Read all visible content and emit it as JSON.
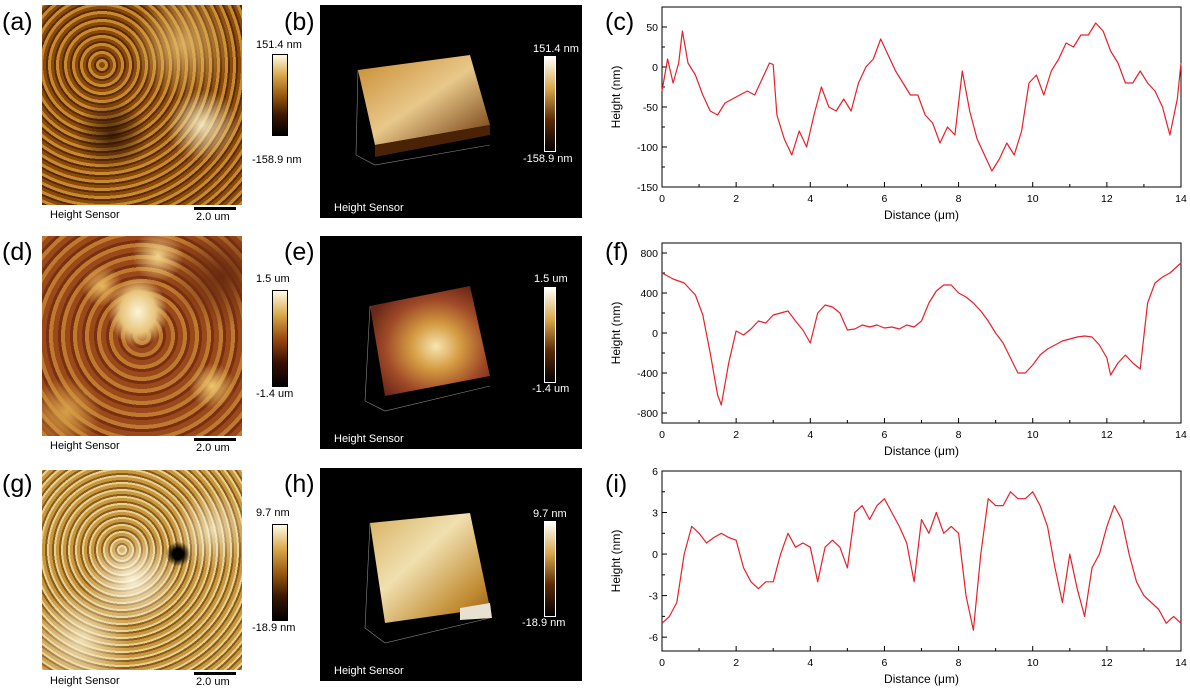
{
  "panels": {
    "a": {
      "letter": "(a)",
      "label": "Height Sensor",
      "scale": "2.0 um",
      "cmax": "151.4 nm",
      "cmin": "-158.9 nm"
    },
    "b": {
      "letter": "(b)",
      "label": "Height Sensor",
      "cmax": "151.4 nm",
      "cmin": "-158.9 nm"
    },
    "c": {
      "letter": "(c)"
    },
    "d": {
      "letter": "(d)",
      "label": "Height Sensor",
      "scale": "2.0 um",
      "cmax": "1.5 um",
      "cmin": "-1.4 um"
    },
    "e": {
      "letter": "(e)",
      "label": "Height Sensor",
      "cmax": "1.5 um",
      "cmin": "-1.4 um"
    },
    "f": {
      "letter": "(f)"
    },
    "g": {
      "letter": "(g)",
      "label": "Height Sensor",
      "scale": "2.0 um",
      "cmax": "9.7 nm",
      "cmin": "-18.9 nm"
    },
    "h": {
      "letter": "(h)",
      "label": "Height Sensor",
      "cmax": "9.7 nm",
      "cmin": "-18.9 nm"
    },
    "i": {
      "letter": "(i)"
    }
  },
  "colors": {
    "line": "#e8202a",
    "afm_dark": "#2a1200",
    "afm_mid": "#9a5a10",
    "afm_light": "#f2e6b8"
  },
  "chart_data": [
    {
      "id": "c",
      "type": "line",
      "xlabel": "Distance (μm)",
      "ylabel": "Height (nm)",
      "xlim": [
        0,
        14
      ],
      "ylim": [
        -150,
        75
      ],
      "xticks": [
        0,
        2,
        4,
        6,
        8,
        10,
        12,
        14
      ],
      "yticks": [
        -150,
        -100,
        -50,
        0,
        50
      ],
      "series": [
        {
          "x": [
            0,
            0.15,
            0.3,
            0.45,
            0.55,
            0.7,
            0.9,
            1.1,
            1.3,
            1.5,
            1.7,
            1.9,
            2.1,
            2.3,
            2.5,
            2.7,
            2.9,
            3.0,
            3.1,
            3.3,
            3.5,
            3.7,
            3.9,
            4.1,
            4.3,
            4.5,
            4.7,
            4.9,
            5.1,
            5.3,
            5.5,
            5.7,
            5.9,
            6.1,
            6.3,
            6.5,
            6.7,
            6.9,
            7.1,
            7.3,
            7.5,
            7.7,
            7.9,
            8.1,
            8.3,
            8.5,
            8.7,
            8.9,
            9.1,
            9.3,
            9.5,
            9.7,
            9.9,
            10.1,
            10.3,
            10.5,
            10.7,
            10.9,
            11.1,
            11.3,
            11.5,
            11.7,
            11.9,
            12.1,
            12.3,
            12.5,
            12.7,
            12.9,
            13.1,
            13.3,
            13.5,
            13.7,
            13.9,
            14.0
          ],
          "y": [
            -30,
            10,
            -20,
            5,
            45,
            5,
            -10,
            -35,
            -55,
            -60,
            -45,
            -40,
            -35,
            -30,
            -35,
            -15,
            5,
            3,
            -60,
            -90,
            -110,
            -80,
            -100,
            -60,
            -25,
            -50,
            -55,
            -40,
            -55,
            -20,
            0,
            10,
            35,
            15,
            -5,
            -20,
            -35,
            -35,
            -60,
            -70,
            -95,
            -75,
            -85,
            -5,
            -55,
            -90,
            -110,
            -130,
            -115,
            -95,
            -110,
            -80,
            -20,
            -10,
            -35,
            -5,
            10,
            30,
            25,
            40,
            40,
            55,
            45,
            20,
            5,
            -20,
            -20,
            -5,
            -20,
            -30,
            -50,
            -85,
            -40,
            5
          ]
        }
      ]
    },
    {
      "id": "f",
      "type": "line",
      "xlabel": "Distance (μm)",
      "ylabel": "Height (nm)",
      "xlim": [
        0,
        14
      ],
      "ylim": [
        -900,
        900
      ],
      "xticks": [
        0,
        2,
        4,
        6,
        8,
        10,
        12,
        14
      ],
      "yticks": [
        -800,
        -400,
        0,
        400,
        800
      ],
      "series": [
        {
          "x": [
            0,
            0.3,
            0.6,
            0.9,
            1.1,
            1.3,
            1.5,
            1.6,
            1.8,
            2.0,
            2.2,
            2.4,
            2.6,
            2.8,
            3.0,
            3.2,
            3.4,
            3.6,
            3.8,
            4.0,
            4.2,
            4.4,
            4.6,
            4.8,
            5.0,
            5.2,
            5.4,
            5.6,
            5.8,
            6.0,
            6.2,
            6.4,
            6.6,
            6.8,
            7.0,
            7.2,
            7.4,
            7.6,
            7.8,
            8.0,
            8.2,
            8.4,
            8.6,
            8.8,
            9.0,
            9.2,
            9.4,
            9.6,
            9.8,
            10.0,
            10.2,
            10.4,
            10.6,
            10.8,
            11.0,
            11.2,
            11.4,
            11.6,
            11.8,
            12.0,
            12.1,
            12.3,
            12.5,
            12.7,
            12.9,
            13.1,
            13.3,
            13.5,
            13.7,
            14.0
          ],
          "y": [
            600,
            540,
            500,
            380,
            180,
            -200,
            -620,
            -720,
            -300,
            20,
            -20,
            40,
            120,
            100,
            180,
            200,
            220,
            120,
            30,
            -100,
            200,
            280,
            260,
            200,
            30,
            40,
            80,
            60,
            80,
            50,
            60,
            40,
            80,
            60,
            120,
            300,
            420,
            480,
            480,
            400,
            360,
            300,
            220,
            120,
            0,
            -100,
            -250,
            -400,
            -400,
            -320,
            -220,
            -160,
            -120,
            -80,
            -60,
            -40,
            -30,
            -40,
            -120,
            -250,
            -420,
            -300,
            -220,
            -300,
            -360,
            300,
            500,
            560,
            600,
            700
          ]
        }
      ]
    },
    {
      "id": "i",
      "type": "line",
      "xlabel": "Distance (μm)",
      "ylabel": "Height (nm)",
      "xlim": [
        0,
        14
      ],
      "ylim": [
        -7,
        6
      ],
      "xticks": [
        0,
        2,
        4,
        6,
        8,
        10,
        12,
        14
      ],
      "yticks": [
        -6,
        -3,
        0,
        3,
        6
      ],
      "series": [
        {
          "x": [
            0,
            0.2,
            0.4,
            0.6,
            0.8,
            1.0,
            1.2,
            1.4,
            1.6,
            1.8,
            2.0,
            2.2,
            2.4,
            2.6,
            2.8,
            3.0,
            3.2,
            3.4,
            3.6,
            3.8,
            4.0,
            4.2,
            4.4,
            4.6,
            4.8,
            5.0,
            5.2,
            5.4,
            5.6,
            5.8,
            6.0,
            6.2,
            6.4,
            6.6,
            6.8,
            7.0,
            7.2,
            7.4,
            7.6,
            7.8,
            8.0,
            8.2,
            8.4,
            8.6,
            8.8,
            9.0,
            9.2,
            9.4,
            9.6,
            9.8,
            10.0,
            10.2,
            10.4,
            10.6,
            10.8,
            11.0,
            11.2,
            11.4,
            11.6,
            11.8,
            12.0,
            12.2,
            12.4,
            12.6,
            12.8,
            13.0,
            13.2,
            13.4,
            13.6,
            13.8,
            14.0
          ],
          "y": [
            -5,
            -4.5,
            -3.5,
            0,
            2,
            1.5,
            0.8,
            1.2,
            1.5,
            1.2,
            1,
            -1,
            -2,
            -2.5,
            -2,
            -2,
            0,
            1.5,
            0.5,
            0.8,
            0.5,
            -2,
            0.5,
            1,
            0.5,
            -1,
            3,
            3.5,
            2.5,
            3.5,
            4,
            3,
            2,
            0.8,
            -2,
            2.5,
            1.5,
            3,
            1.5,
            2,
            1.5,
            -3,
            -5.5,
            0,
            4,
            3.5,
            3.5,
            4.5,
            4,
            4,
            4.5,
            3.5,
            2,
            -1,
            -3.5,
            0,
            -2.5,
            -4.5,
            -1,
            0,
            2,
            3.5,
            2.5,
            0,
            -2,
            -3,
            -3.5,
            -4,
            -5,
            -4.5,
            -5
          ]
        }
      ]
    }
  ]
}
